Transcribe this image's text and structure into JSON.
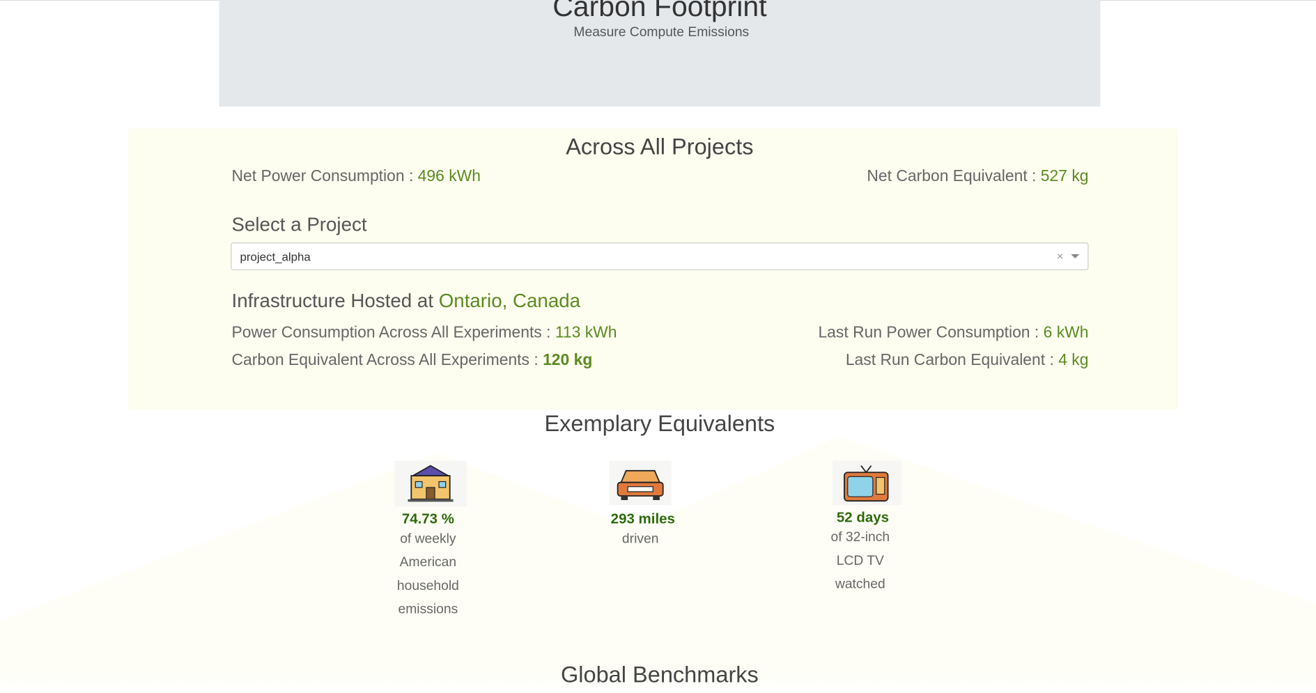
{
  "header": {
    "title": "Carbon Footprint",
    "subtitle": "Measure Compute Emissions"
  },
  "summary": {
    "title": "Across All Projects",
    "net_power": {
      "label": "Net Power Consumption :",
      "value": "496 kWh"
    },
    "net_carbon": {
      "label": "Net Carbon Equivalent :",
      "value": "527 kg"
    }
  },
  "project_select": {
    "label": "Select a Project",
    "selected": "project_alpha",
    "clear": "×"
  },
  "project": {
    "location_label": "Infrastructure Hosted at",
    "location": "Ontario, Canada",
    "power_all": {
      "label": "Power Consumption Across All Experiments :",
      "value": "113 kWh"
    },
    "carbon_all": {
      "label": "Carbon Equivalent Across All Experiments :",
      "value": "120 kg"
    },
    "last_power": {
      "label": "Last Run Power Consumption :",
      "value": "6 kWh"
    },
    "last_carbon": {
      "label": "Last Run Carbon Equivalent :",
      "value": "4 kg"
    }
  },
  "equivalents": {
    "title": "Exemplary Equivalents",
    "items": [
      {
        "value": "74.73 %",
        "description": "of weekly American household emissions"
      },
      {
        "value": "293 miles",
        "description": "driven"
      },
      {
        "value": "52 days",
        "description": "of 32-inch LCD TV watched"
      }
    ]
  },
  "benchmarks": {
    "title": "Global Benchmarks"
  }
}
